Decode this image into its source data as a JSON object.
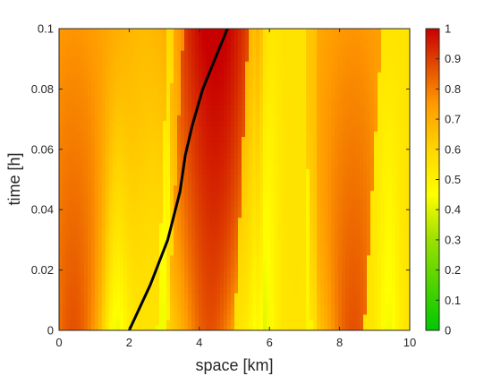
{
  "chart_data": {
    "type": "heatmap",
    "title": "",
    "xlabel": "space [km]",
    "ylabel": "time [h]",
    "xlim": [
      0,
      10
    ],
    "ylim": [
      0,
      0.1
    ],
    "x_ticks": [
      "0",
      "2",
      "4",
      "6",
      "8",
      "10"
    ],
    "y_ticks": [
      "0",
      "0.02",
      "0.04",
      "0.06",
      "0.08",
      "0.1"
    ],
    "colorbar": {
      "range": [
        0,
        1
      ],
      "ticks": [
        "0",
        "0.1",
        "0.2",
        "0.3",
        "0.4",
        "0.5",
        "0.6",
        "0.7",
        "0.8",
        "0.9",
        "1"
      ],
      "colormap": [
        "#00c800",
        "#48d200",
        "#9be000",
        "#e0f200",
        "#ffff00",
        "#ffd600",
        "#ffad00",
        "#ff8000",
        "#e04000",
        "#c80000"
      ]
    },
    "trajectory": {
      "x": [
        2.0,
        2.6,
        3.1,
        3.45,
        3.6,
        3.8,
        4.1,
        4.45,
        4.8
      ],
      "t": [
        0.0,
        0.015,
        0.03,
        0.046,
        0.058,
        0.068,
        0.08,
        0.09,
        0.1
      ],
      "color": "#000000"
    },
    "density_profile_description_points": {
      "t0_x": [
        0,
        0.5,
        1.0,
        1.3,
        1.6,
        2.0,
        2.5,
        3.0,
        3.5,
        4.0,
        4.5,
        5.0,
        5.5,
        5.8,
        6.5,
        7.0,
        7.5,
        8.0,
        8.5,
        9.0,
        9.5,
        10
      ],
      "t0_value": [
        0.72,
        0.9,
        0.85,
        0.55,
        0.35,
        0.45,
        0.55,
        0.35,
        0.8,
        0.88,
        0.7,
        0.5,
        0.38,
        0.45,
        0.52,
        0.6,
        0.78,
        0.88,
        0.8,
        0.7,
        0.62,
        0.6
      ]
    }
  }
}
